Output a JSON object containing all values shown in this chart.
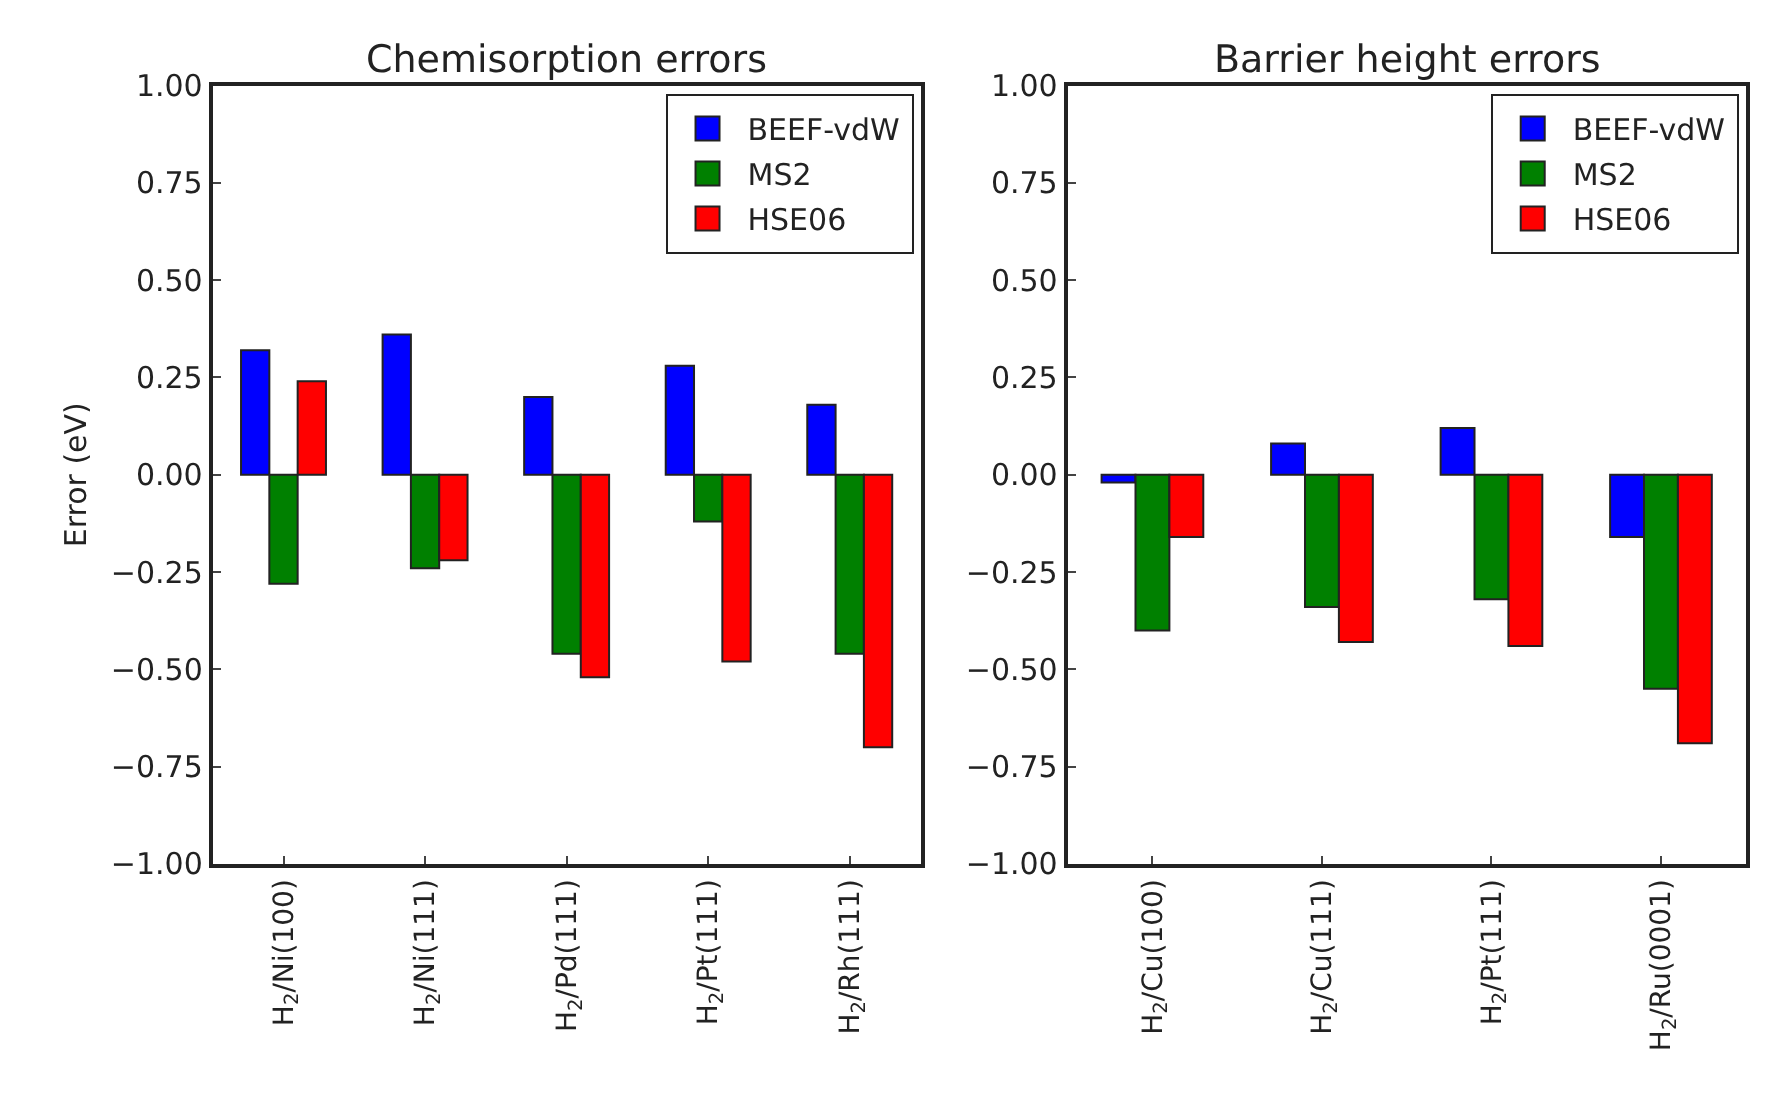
{
  "chart_data": [
    {
      "type": "bar",
      "title": "Chemisorption errors",
      "ylabel": "Error (eV)",
      "categories": [
        "H$_{2}$/Ni(100)",
        "H$_{2}$/Ni(111)",
        "H$_{2}$/Pd(111)",
        "H$_{2}$/Pt(111)",
        "H$_{2}$/Rh(111)"
      ],
      "series": [
        {
          "name": "BEEF-vdW",
          "color": "#0000ff",
          "values": [
            0.32,
            0.36,
            0.2,
            0.28,
            0.18
          ]
        },
        {
          "name": "MS2",
          "color": "#008000",
          "values": [
            -0.28,
            -0.24,
            -0.46,
            -0.12,
            -0.46
          ]
        },
        {
          "name": "HSE06",
          "color": "#ff0000",
          "values": [
            0.24,
            -0.22,
            -0.52,
            -0.48,
            -0.7
          ]
        }
      ],
      "ylim": [
        -1.0,
        1.0
      ],
      "yticks": [
        {
          "value": -1.0,
          "label": "−1.00"
        },
        {
          "value": -0.75,
          "label": "−0.75"
        },
        {
          "value": -0.5,
          "label": "−0.50"
        },
        {
          "value": -0.25,
          "label": "−0.25"
        },
        {
          "value": 0.0,
          "label": "0.00"
        },
        {
          "value": 0.25,
          "label": "0.25"
        },
        {
          "value": 0.5,
          "label": "0.50"
        },
        {
          "value": 0.75,
          "label": "0.75"
        },
        {
          "value": 1.0,
          "label": "1.00"
        }
      ],
      "grid": false,
      "legend": "top right"
    },
    {
      "type": "bar",
      "title": "Barrier height errors",
      "categories": [
        "H$_{2}$/Cu(100)",
        "H$_{2}$/Cu(111)",
        "H$_{2}$/Pt(111)",
        "H$_{2}$/Ru(0001)"
      ],
      "series": [
        {
          "name": "BEEF-vdW",
          "color": "#0000ff",
          "values": [
            -0.02,
            0.08,
            0.12,
            -0.16
          ]
        },
        {
          "name": "MS2",
          "color": "#008000",
          "values": [
            -0.4,
            -0.34,
            -0.32,
            -0.55
          ]
        },
        {
          "name": "HSE06",
          "color": "#ff0000",
          "values": [
            -0.16,
            -0.43,
            -0.44,
            -0.69
          ]
        }
      ],
      "ylim": [
        -1.0,
        1.0
      ],
      "yticks": [
        {
          "value": -1.0,
          "label": "−1.00"
        },
        {
          "value": -0.75,
          "label": "−0.75"
        },
        {
          "value": -0.5,
          "label": "−0.50"
        },
        {
          "value": -0.25,
          "label": "−0.25"
        },
        {
          "value": 0.0,
          "label": "0.00"
        },
        {
          "value": 0.25,
          "label": "0.25"
        },
        {
          "value": 0.5,
          "label": "0.50"
        },
        {
          "value": 0.75,
          "label": "0.75"
        },
        {
          "value": 1.0,
          "label": "1.00"
        }
      ],
      "grid": false,
      "legend": "top right"
    }
  ]
}
